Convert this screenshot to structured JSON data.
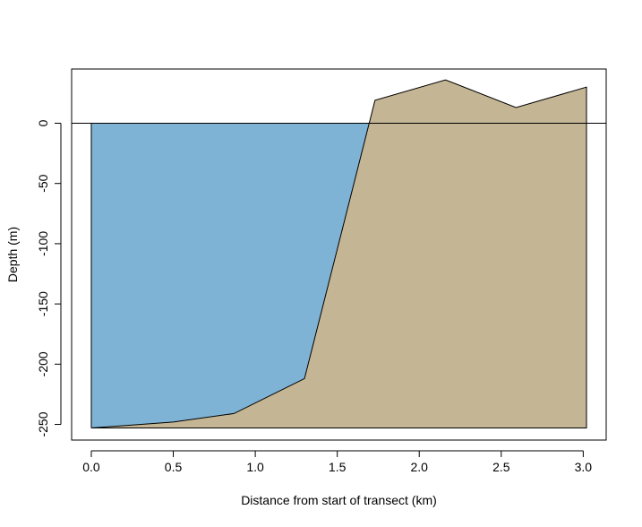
{
  "chart_data": {
    "type": "area",
    "title": "",
    "xlabel": "Distance from start of transect (km)",
    "ylabel": "Depth (m)",
    "xlim": [
      -0.12,
      3.14
    ],
    "ylim": [
      -263,
      45
    ],
    "x_ticks": [
      {
        "value": 0.0,
        "label": "0.0"
      },
      {
        "value": 0.5,
        "label": "0.5"
      },
      {
        "value": 1.0,
        "label": "1.0"
      },
      {
        "value": 1.5,
        "label": "1.5"
      },
      {
        "value": 2.0,
        "label": "2.0"
      },
      {
        "value": 2.5,
        "label": "2.5"
      },
      {
        "value": 3.0,
        "label": "3.0"
      }
    ],
    "y_ticks": [
      {
        "value": 0,
        "label": "0"
      },
      {
        "value": -50,
        "label": "-50"
      },
      {
        "value": -100,
        "label": "-100"
      },
      {
        "value": -150,
        "label": "-150"
      },
      {
        "value": -200,
        "label": "-200"
      },
      {
        "value": -250,
        "label": "-250"
      }
    ],
    "grid": false,
    "legend": "none",
    "baseline": -253,
    "sea_level": 0,
    "series": [
      {
        "role": "water",
        "color": "#7fb3d5",
        "x": [
          0.0,
          0.0,
          1.71,
          1.71
        ],
        "y": [
          0,
          -253,
          -253,
          0
        ]
      },
      {
        "role": "seabed",
        "color": "#c4b594",
        "outline": "#000000",
        "x": [
          0.0,
          0.5,
          0.87,
          1.3,
          1.73,
          2.16,
          2.59,
          3.02
        ],
        "y": [
          -253,
          -248,
          -241,
          -212,
          19,
          36,
          13,
          30
        ]
      }
    ]
  }
}
